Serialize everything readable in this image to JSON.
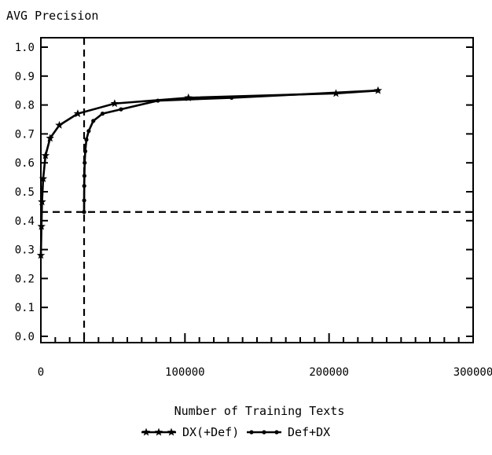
{
  "chart_data": {
    "type": "line",
    "title": "",
    "ylabel": "AVG Precision",
    "xlabel": "Number of Training Texts",
    "xlim": [
      0,
      300000
    ],
    "ylim": [
      0.0,
      1.0
    ],
    "x_ticks": [
      0,
      100000,
      200000,
      300000
    ],
    "x_tick_labels": [
      "0",
      "100000",
      "200000",
      "300000"
    ],
    "y_ticks": [
      0.0,
      0.1,
      0.2,
      0.3,
      0.4,
      0.5,
      0.6,
      0.7,
      0.8,
      0.9,
      1.0
    ],
    "y_tick_labels": [
      "0.0",
      "0.1",
      "0.2",
      "0.3",
      "0.4",
      "0.5",
      "0.6",
      "0.7",
      "0.8",
      "0.9",
      "1.0"
    ],
    "grid": false,
    "legend_position": "bottom-center",
    "series": [
      {
        "name": "DX(+Def)",
        "marker": "star",
        "x": [
          0,
          400,
          800,
          1600,
          3200,
          6400,
          12800,
          25600,
          51200,
          102400,
          204800,
          234000
        ],
        "y": [
          0.28,
          0.38,
          0.465,
          0.545,
          0.625,
          0.685,
          0.73,
          0.77,
          0.805,
          0.825,
          0.84,
          0.85
        ]
      },
      {
        "name": "Def+DX",
        "marker": "dot",
        "x": [
          30000,
          30050,
          30100,
          30200,
          30400,
          30800,
          31600,
          33200,
          36400,
          42800,
          55600,
          81200,
          132400,
          234000
        ],
        "y": [
          0.43,
          0.47,
          0.52,
          0.555,
          0.6,
          0.64,
          0.68,
          0.71,
          0.745,
          0.77,
          0.785,
          0.815,
          0.825,
          0.85
        ]
      }
    ],
    "reference_lines": [
      {
        "orientation": "vertical",
        "x": 30000,
        "style": "dashed"
      },
      {
        "orientation": "horizontal",
        "y": 0.43,
        "style": "dashed"
      }
    ]
  }
}
